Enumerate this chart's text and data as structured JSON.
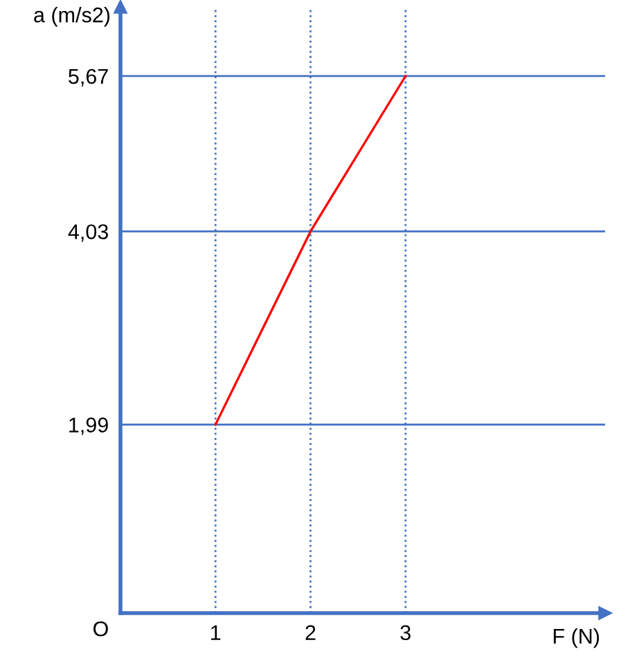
{
  "chart_data": {
    "type": "line",
    "xlabel": "F (N)",
    "ylabel": "a (m/s2)",
    "x": [
      1,
      2,
      3
    ],
    "series": [
      {
        "color": "#ff0000",
        "values": [
          1.99,
          4.03,
          5.67
        ]
      }
    ],
    "xlim": [
      0,
      5.1
    ],
    "ylim": [
      0,
      6.4
    ],
    "xticks": [
      1,
      2,
      3
    ],
    "yticks": [
      {
        "value": 1.99,
        "label": "1,99"
      },
      {
        "value": 4.03,
        "label": "4,03"
      },
      {
        "value": 5.67,
        "label": "5,67"
      }
    ],
    "annotations": [
      "O"
    ],
    "grid": true,
    "marker": "none",
    "line_style": "solid"
  }
}
